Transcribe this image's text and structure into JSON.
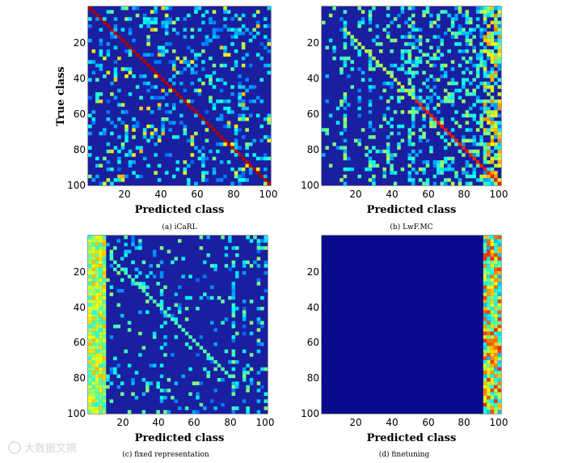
{
  "figure": {
    "watermark": "大数据文摘"
  },
  "chart_data": [
    {
      "type": "heatmap",
      "caption": "(a) iCaRL",
      "xlabel": "Predicted class",
      "ylabel": "True class",
      "xticks": [
        20,
        40,
        60,
        80,
        100
      ],
      "yticks": [
        20,
        40,
        60,
        80,
        100
      ],
      "xlim": [
        1,
        100
      ],
      "ylim": [
        1,
        100
      ],
      "colormap": "jet",
      "pattern": "strong diagonal, uniform off-diagonal noise",
      "colors": {
        "background": "#1a1fa0"
      }
    },
    {
      "type": "heatmap",
      "caption": "(b) LwF.MC",
      "xlabel": "Predicted class",
      "ylabel": "",
      "xticks": [
        20,
        40,
        60,
        80,
        100
      ],
      "yticks": [
        20,
        40,
        60,
        80,
        100
      ],
      "xlim": [
        1,
        100
      ],
      "ylim": [
        1,
        100
      ],
      "colormap": "jet",
      "pattern": "diagonal plus bias toward recent classes (right columns)",
      "colors": {
        "background": "#1a1fa0"
      }
    },
    {
      "type": "heatmap",
      "caption": "(c) fixed representation",
      "xlabel": "Predicted class",
      "ylabel": "",
      "xticks": [
        20,
        40,
        60,
        80,
        100
      ],
      "yticks": [
        20,
        40,
        60,
        80,
        100
      ],
      "xlim": [
        1,
        100
      ],
      "ylim": [
        1,
        100
      ],
      "colormap": "jet",
      "pattern": "strong bias toward first 10 classes (left columns)",
      "colors": {
        "background": "#1a1fa0"
      }
    },
    {
      "type": "heatmap",
      "caption": "(d) finetuning",
      "xlabel": "Predicted class",
      "ylabel": "",
      "xticks": [
        20,
        40,
        60,
        80,
        100
      ],
      "yticks": [
        20,
        40,
        60,
        80,
        100
      ],
      "xlim": [
        1,
        100
      ],
      "ylim": [
        1,
        100
      ],
      "colormap": "jet",
      "pattern": "all predictions in last 10 classes (right columns)",
      "colors": {
        "background": "#0a0a8c"
      }
    }
  ]
}
